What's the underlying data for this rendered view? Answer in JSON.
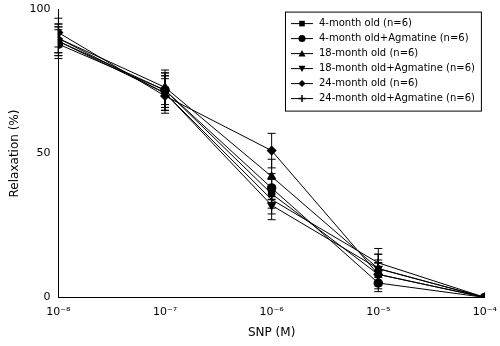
{
  "chart_data": {
    "type": "line",
    "x_label": "SNP (M)",
    "y_label": "Relaxation (%)",
    "x": [
      1e-08,
      1e-07,
      1e-06,
      1e-05,
      0.0001
    ],
    "xlim": [
      1e-08,
      0.0001
    ],
    "xticks": [
      {
        "value": 1e-08,
        "label": "10⁻⁸"
      },
      {
        "value": 1e-07,
        "label": "10⁻⁷"
      },
      {
        "value": 1e-06,
        "label": "10⁻⁶"
      },
      {
        "value": 1e-05,
        "label": "10⁻⁵"
      },
      {
        "value": 0.0001,
        "label": "10⁻⁴"
      }
    ],
    "ylim": [
      0,
      100
    ],
    "yticks": [
      0,
      50,
      100
    ],
    "log": "x",
    "grid": false,
    "legend": "top right",
    "series": [
      {
        "name": "4-month old (n=6)",
        "color": "#000000",
        "marker": "square",
        "line_style": "solid",
        "values": [
          89,
          72,
          36,
          8,
          0
        ],
        "errors": [
          5,
          6,
          5,
          4,
          0
        ]
      },
      {
        "name": "4-month old+Agmatine (n=6)",
        "color": "#000000",
        "marker": "circle",
        "line_style": "solid",
        "values": [
          88,
          72,
          38,
          5,
          0
        ],
        "errors": [
          5,
          6,
          5,
          3,
          0
        ]
      },
      {
        "name": "18-month old (n=6)",
        "color": "#000000",
        "marker": "triangle",
        "line_style": "solid",
        "values": [
          90,
          73,
          42,
          10,
          0
        ],
        "errors": [
          5,
          6,
          6,
          5,
          0
        ]
      },
      {
        "name": "18-month old+Agmatine (n=6)",
        "color": "#000000",
        "marker": "triangle_down",
        "line_style": "solid",
        "values": [
          89,
          71,
          32,
          10,
          0
        ],
        "errors": [
          5,
          6,
          5,
          5,
          0
        ]
      },
      {
        "name": "24-month old (n=6)",
        "color": "#000000",
        "marker": "diamond",
        "line_style": "solid",
        "values": [
          92,
          70,
          51,
          8,
          0
        ],
        "errors": [
          5,
          6,
          6,
          5,
          0
        ]
      },
      {
        "name": "24-month old+Agmatine (n=6)",
        "color": "#000000",
        "marker": "plus",
        "line_style": "solid",
        "values": [
          90,
          71,
          34,
          12,
          0
        ],
        "errors": [
          5,
          6,
          5,
          5,
          0
        ]
      }
    ]
  }
}
